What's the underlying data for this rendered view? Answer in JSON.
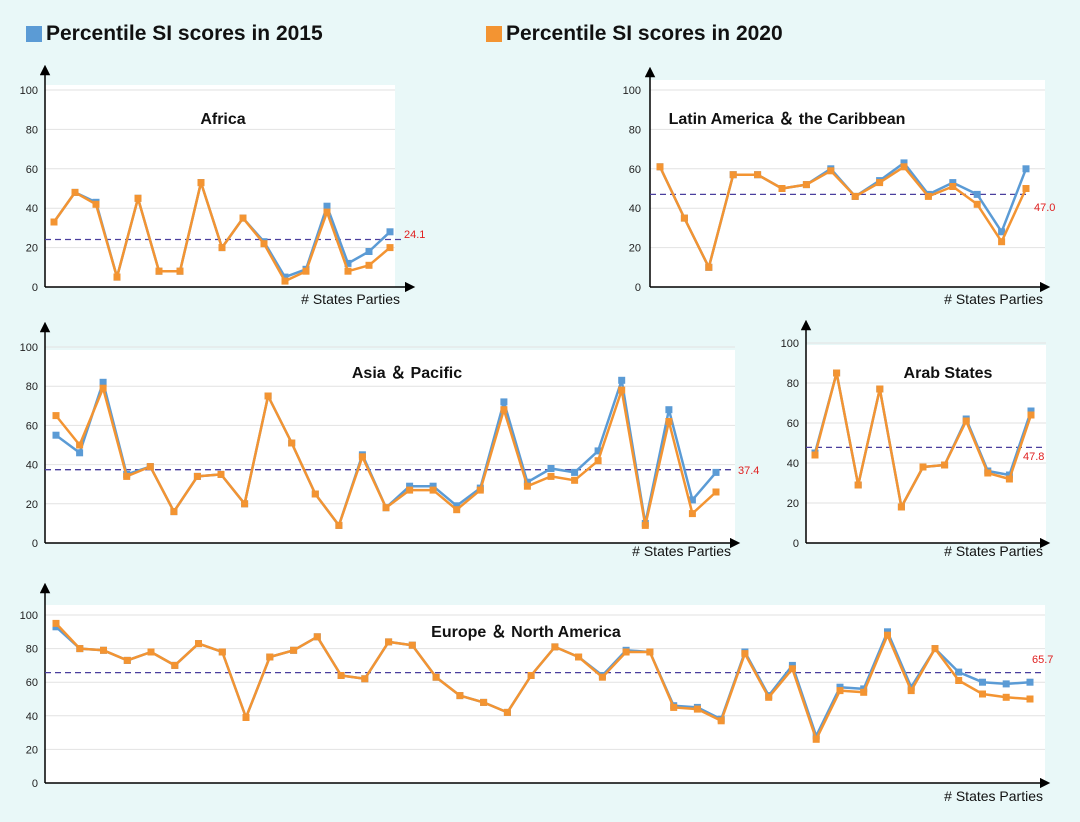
{
  "legend": [
    {
      "label": "Percentile SI scores in 2015",
      "color": "#5b9bd5"
    },
    {
      "label": "Percentile SI scores in 2020",
      "color": "#f39432"
    }
  ],
  "chart_data": [
    {
      "type": "line",
      "title": "Africa",
      "xlabel": "# States Parties",
      "ylabel": "",
      "ylim": [
        0,
        100
      ],
      "yticks": [
        0,
        20,
        40,
        60,
        80,
        100
      ],
      "average": {
        "value": 24.1,
        "label": "24.1"
      },
      "series": [
        {
          "values": [
            33,
            48,
            43,
            5,
            45,
            8,
            8,
            53,
            20,
            35,
            23,
            5,
            9,
            41,
            12,
            18,
            28
          ]
        },
        {
          "values": [
            33,
            48,
            42,
            5,
            45,
            8,
            8,
            53,
            20,
            35,
            22,
            3,
            8,
            38,
            8,
            11,
            20
          ]
        }
      ]
    },
    {
      "type": "line",
      "title": "Latin America ＆ the Caribbean",
      "xlabel": "# States Parties",
      "ylabel": "",
      "ylim": [
        0,
        100
      ],
      "yticks": [
        0,
        20,
        40,
        60,
        80,
        100
      ],
      "average": {
        "value": 47.0,
        "label": "47.0"
      },
      "series": [
        {
          "values": [
            61,
            35,
            10,
            57,
            57,
            50,
            52,
            60,
            46,
            54,
            63,
            47,
            53,
            47,
            28,
            60
          ]
        },
        {
          "values": [
            61,
            35,
            10,
            57,
            57,
            50,
            52,
            59,
            46,
            53,
            61,
            46,
            51,
            42,
            23,
            50
          ]
        }
      ]
    },
    {
      "type": "line",
      "title": "Asia ＆ Pacific",
      "xlabel": "# States Parties",
      "ylabel": "",
      "ylim": [
        0,
        100
      ],
      "yticks": [
        0,
        20,
        40,
        60,
        80,
        100
      ],
      "average": {
        "value": 37.4,
        "label": "37.4"
      },
      "series": [
        {
          "values": [
            55,
            46,
            82,
            35,
            39,
            16,
            34,
            35,
            20,
            75,
            51,
            25,
            9,
            45,
            18,
            29,
            29,
            19,
            28,
            72,
            31,
            38,
            36,
            47,
            83,
            10,
            68,
            22,
            36
          ]
        },
        {
          "values": [
            65,
            50,
            79,
            34,
            39,
            16,
            34,
            35,
            20,
            75,
            51,
            25,
            9,
            44,
            18,
            27,
            27,
            17,
            27,
            68,
            29,
            34,
            32,
            42,
            78,
            9,
            62,
            15,
            26
          ]
        }
      ]
    },
    {
      "type": "line",
      "title": "Arab States",
      "xlabel": "# States Parties",
      "ylabel": "",
      "ylim": [
        0,
        100
      ],
      "yticks": [
        0,
        20,
        40,
        60,
        80,
        100
      ],
      "average": {
        "value": 47.8,
        "label": "47.8"
      },
      "series": [
        {
          "values": [
            45,
            85,
            29,
            77,
            18,
            38,
            39,
            62,
            36,
            34,
            66
          ]
        },
        {
          "values": [
            44,
            85,
            29,
            77,
            18,
            38,
            39,
            61,
            35,
            32,
            64
          ]
        }
      ]
    },
    {
      "type": "line",
      "title": "Europe ＆ North America",
      "xlabel": "# States Parties",
      "ylabel": "",
      "ylim": [
        0,
        100
      ],
      "yticks": [
        0,
        20,
        40,
        60,
        80,
        100
      ],
      "average": {
        "value": 65.7,
        "label": "65.7"
      },
      "series": [
        {
          "values": [
            93,
            80,
            79,
            73,
            78,
            70,
            83,
            78,
            39,
            75,
            79,
            87,
            64,
            62,
            84,
            82,
            63,
            52,
            48,
            42,
            64,
            81,
            75,
            64,
            79,
            78,
            46,
            45,
            38,
            78,
            52,
            70,
            28,
            57,
            56,
            90,
            57,
            80,
            66,
            60,
            59,
            60
          ]
        },
        {
          "values": [
            95,
            80,
            79,
            73,
            78,
            70,
            83,
            78,
            39,
            75,
            79,
            87,
            64,
            62,
            84,
            82,
            63,
            52,
            48,
            42,
            64,
            81,
            75,
            63,
            78,
            78,
            45,
            44,
            37,
            77,
            51,
            68,
            26,
            55,
            54,
            88,
            55,
            80,
            61,
            53,
            51,
            50
          ]
        }
      ]
    }
  ]
}
